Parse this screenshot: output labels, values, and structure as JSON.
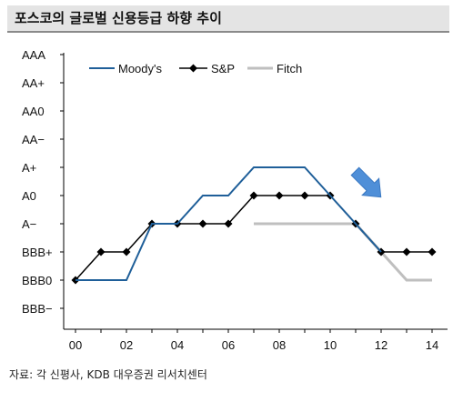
{
  "title": "포스코의 글로벌 신용등급 하향 추이",
  "source": "자료: 각 신평사, KDB 대우증권 리서치센터",
  "chart_data": {
    "type": "line",
    "y_categories": [
      "BBB−",
      "BBB0",
      "BBB+",
      "A−",
      "A0",
      "A+",
      "AA−",
      "AA0",
      "AA+",
      "AAA"
    ],
    "x_ticks": [
      "00",
      "02",
      "04",
      "06",
      "08",
      "10",
      "12",
      "14"
    ],
    "xlim": [
      2000,
      2014.3
    ],
    "grid": false,
    "legend_position": "top-left",
    "series": [
      {
        "name": "Moody's",
        "color": "#1f5f99",
        "marker": "none",
        "x": [
          2000,
          2002,
          2003,
          2004,
          2005,
          2006,
          2007,
          2008,
          2009,
          2010,
          2011,
          2012
        ],
        "y": [
          "BBB0",
          "BBB0",
          "A−",
          "A−",
          "A0",
          "A0",
          "A+",
          "A+",
          "A+",
          "A0",
          "A−",
          "BBB+"
        ]
      },
      {
        "name": "S&P",
        "color": "#000000",
        "marker": "diamond",
        "x": [
          2000,
          2001,
          2002,
          2003,
          2004,
          2005,
          2006,
          2007,
          2008,
          2009,
          2010,
          2011,
          2012,
          2013,
          2014
        ],
        "y": [
          "BBB0",
          "BBB+",
          "BBB+",
          "A−",
          "A−",
          "A−",
          "A−",
          "A0",
          "A0",
          "A0",
          "A0",
          "A−",
          "BBB+",
          "BBB+",
          "BBB+"
        ]
      },
      {
        "name": "Fitch",
        "color": "#bfbfbf",
        "marker": "none",
        "x": [
          2007,
          2011,
          2013,
          2014
        ],
        "y": [
          "A−",
          "A−",
          "BBB0",
          "BBB0"
        ]
      }
    ],
    "annotation": {
      "type": "arrow",
      "direction": "down-right",
      "color": "#4f8fd8"
    }
  }
}
